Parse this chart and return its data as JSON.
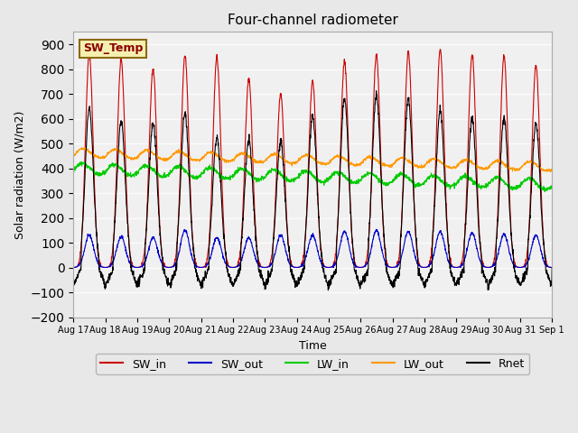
{
  "title": "Four-channel radiometer",
  "xlabel": "Time",
  "ylabel": "Solar radiation (W/m2)",
  "ylim": [
    -200,
    950
  ],
  "yticks": [
    -200,
    -100,
    0,
    100,
    200,
    300,
    400,
    500,
    600,
    700,
    800,
    900
  ],
  "bg_color": "#e8e8e8",
  "plot_bg_color": "#f0f0f0",
  "annotation_text": "SW_Temp",
  "annotation_bg": "#f5f0b0",
  "annotation_border": "#8b6914",
  "colors": {
    "SW_in": "#cc0000",
    "SW_out": "#0000cc",
    "LW_in": "#00cc00",
    "LW_out": "#ff9900",
    "Rnet": "#000000"
  },
  "n_days": 16,
  "start_day": 17,
  "samples_per_day": 144
}
